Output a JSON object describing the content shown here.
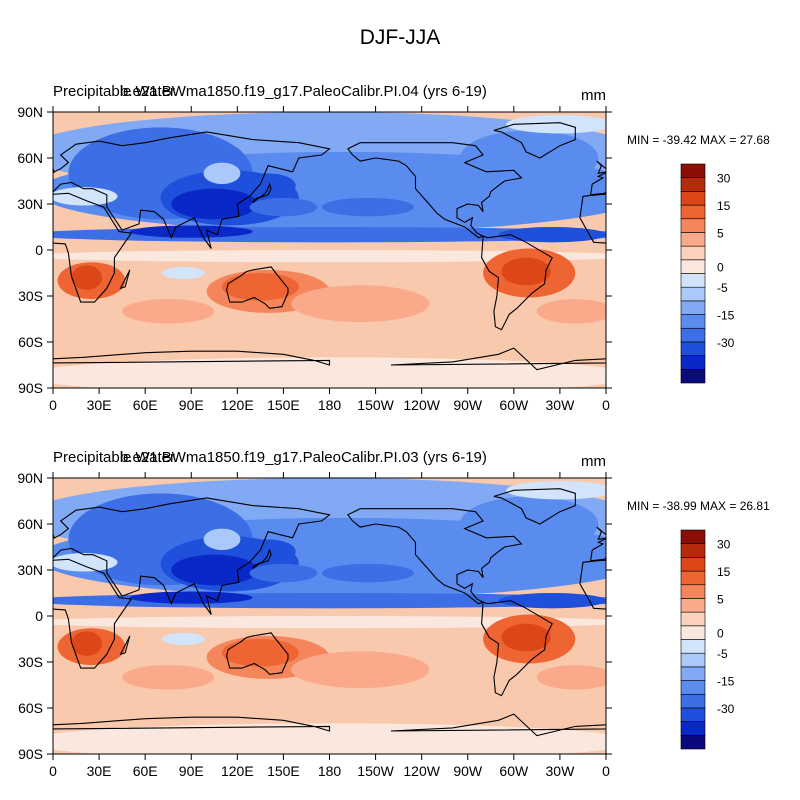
{
  "figure_title": "DJF-JJA",
  "chart_data": [
    {
      "type": "heatmap",
      "variable": "Precipitable Water",
      "case": "b.e21.BWma1850.f19_g17.PaleoCalibr.PI.04 (yrs 6-19)",
      "units": "mm",
      "min_max_text": "MIN = -39.42 MAX =  27.68",
      "min": -39.42,
      "max": 27.68,
      "x_ticks": [
        "0",
        "30E",
        "60E",
        "90E",
        "120E",
        "150E",
        "180",
        "150W",
        "120W",
        "90W",
        "60W",
        "30W",
        "0"
      ],
      "y_ticks": [
        "90N",
        "60N",
        "30N",
        "0",
        "30S",
        "60S",
        "90S"
      ],
      "xlim": [
        0,
        360
      ],
      "ylim": [
        -90,
        90
      ],
      "colorbar_levels": [
        -35,
        -30,
        -25,
        -20,
        -15,
        -10,
        -5,
        -2.5,
        0,
        2.5,
        5,
        10,
        15,
        20,
        25,
        30,
        35
      ],
      "colorbar_labels": [
        "30",
        "15",
        "5",
        "0",
        "-5",
        "-15",
        "-30"
      ]
    },
    {
      "type": "heatmap",
      "variable": "Precipitable Water",
      "case": "b.e21.BWma1850.f19_g17.PaleoCalibr.PI.03 (yrs 6-19)",
      "units": "mm",
      "min_max_text": "MIN = -38.99 MAX =  26.81",
      "min": -38.99,
      "max": 26.81,
      "x_ticks": [
        "0",
        "30E",
        "60E",
        "90E",
        "120E",
        "150E",
        "180",
        "150W",
        "120W",
        "90W",
        "60W",
        "30W",
        "0"
      ],
      "y_ticks": [
        "90N",
        "60N",
        "30N",
        "0",
        "30S",
        "60S",
        "90S"
      ],
      "xlim": [
        0,
        360
      ],
      "ylim": [
        -90,
        90
      ],
      "colorbar_levels": [
        -35,
        -30,
        -25,
        -20,
        -15,
        -10,
        -5,
        -2.5,
        0,
        2.5,
        5,
        10,
        15,
        20,
        25,
        30,
        35
      ],
      "colorbar_labels": [
        "30",
        "15",
        "5",
        "0",
        "-5",
        "-15",
        "-30"
      ]
    }
  ],
  "colors": {
    "palette": [
      "#0a0a7c",
      "#0a28c8",
      "#1e50dc",
      "#3c6ee6",
      "#5a8cf0",
      "#82aaf4",
      "#aac8f8",
      "#d2e4fa",
      "#fae8de",
      "#fcd2bc",
      "#faaa8a",
      "#f5855a",
      "#ee6432",
      "#dc4618",
      "#b42a0a",
      "#8a0e04"
    ],
    "ocean_positive": "#f9c9ad",
    "polar_south": "#fde2d3",
    "land_outline": "#000000"
  }
}
